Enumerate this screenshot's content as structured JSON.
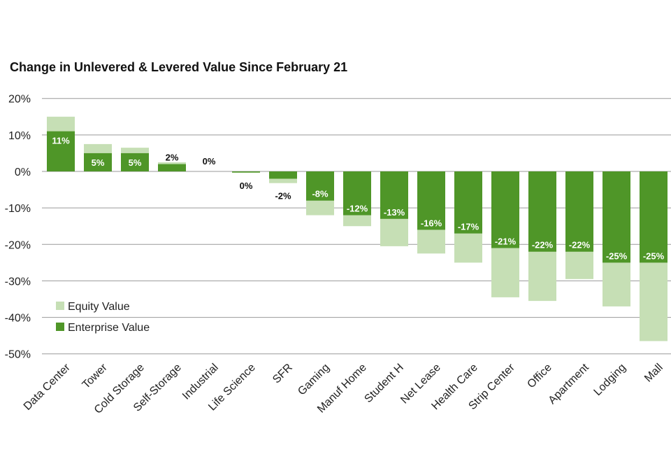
{
  "chart_data": {
    "type": "bar",
    "title": "Change in Unlevered & Levered Value Since February 21",
    "xlabel": "",
    "ylabel": "",
    "ylim": [
      -50,
      20
    ],
    "y_ticks": [
      "20%",
      "10%",
      "0%",
      "-10%",
      "-20%",
      "-30%",
      "-40%",
      "-50%"
    ],
    "y_tick_values": [
      20,
      10,
      0,
      -10,
      -20,
      -30,
      -40,
      -50
    ],
    "grid": true,
    "legend_position": "bottom-left",
    "categories": [
      "Data Center",
      "Tower",
      "Cold Storage",
      "Self-Storage",
      "Industrial",
      "Life Science",
      "SFR",
      "Gaming",
      "Manuf Home",
      "Student H",
      "Net Lease",
      "Health Care",
      "Strip Center",
      "Office",
      "Apartment",
      "Lodging",
      "Mall"
    ],
    "series": [
      {
        "name": "Equity Value",
        "color": "#c6dfb5",
        "values": [
          15,
          7.5,
          6.5,
          2.5,
          0,
          -0.4,
          -3.2,
          -12,
          -15,
          -20.5,
          -22.5,
          -25,
          -34.5,
          -35.5,
          -29.5,
          -37,
          -46.5
        ]
      },
      {
        "name": "Enterprise Value",
        "color": "#4f9628",
        "values": [
          11,
          5,
          5,
          2,
          0,
          -0.1,
          -2,
          -8,
          -12,
          -13,
          -16,
          -17,
          -21,
          -22,
          -22,
          -25,
          -25
        ],
        "data_labels": [
          "11%",
          "5%",
          "5%",
          "2%",
          "0%",
          "0%",
          "-2%",
          "-8%",
          "-12%",
          "-13%",
          "-16%",
          "-17%",
          "-21%",
          "-22%",
          "-22%",
          "-25%",
          "-25%"
        ]
      }
    ]
  }
}
